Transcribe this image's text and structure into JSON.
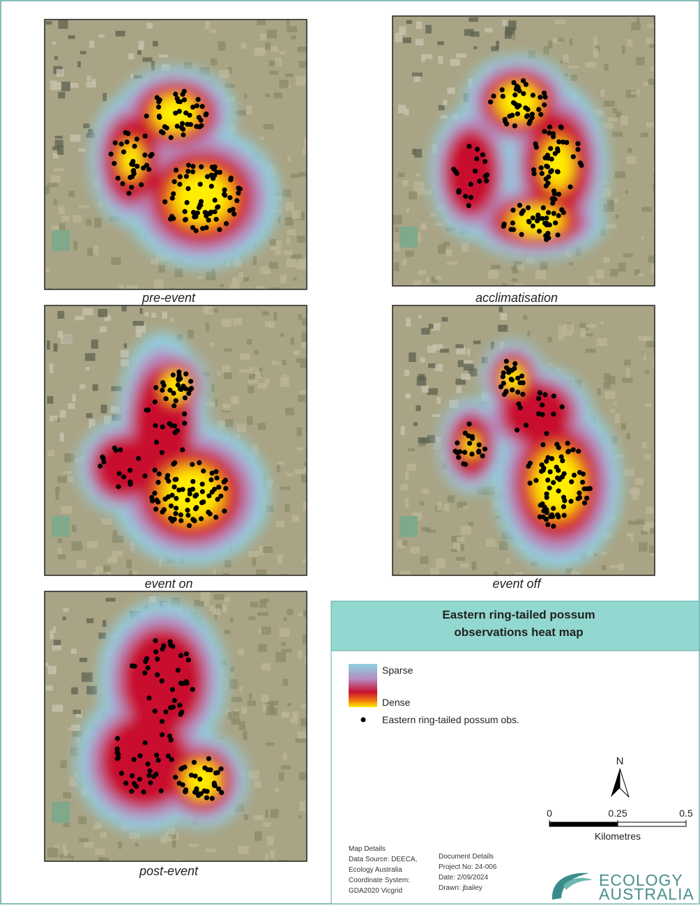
{
  "panels": [
    {
      "label": "pre-event"
    },
    {
      "label": "acclimatisation"
    },
    {
      "label": "event on"
    },
    {
      "label": "event off"
    },
    {
      "label": "post-event"
    }
  ],
  "legend": {
    "title_lines": [
      "Eastern ring-tailed possum",
      "observations heat map"
    ],
    "sparse": "Sparse",
    "dense": "Dense",
    "points": "Eastern ring-tailed possum obs."
  },
  "north": "N",
  "scale_bar": {
    "ticks": [
      0,
      0.25,
      0.5
    ],
    "unit": "Kilometres"
  },
  "map_details": {
    "heading": "Map Details",
    "lines": [
      "Data Source: DEECA,",
      "Ecology Australia",
      "Coordinate System:",
      "GDA2020 Vicgrid"
    ]
  },
  "document_details": {
    "heading": "Document Details",
    "lines": [
      "Project No: 24-006",
      "Date: 2/09/2024",
      "Drawn: jbailey"
    ]
  },
  "logo": {
    "line1": "ECOLOGY",
    "line2": "AUSTRALIA"
  }
}
